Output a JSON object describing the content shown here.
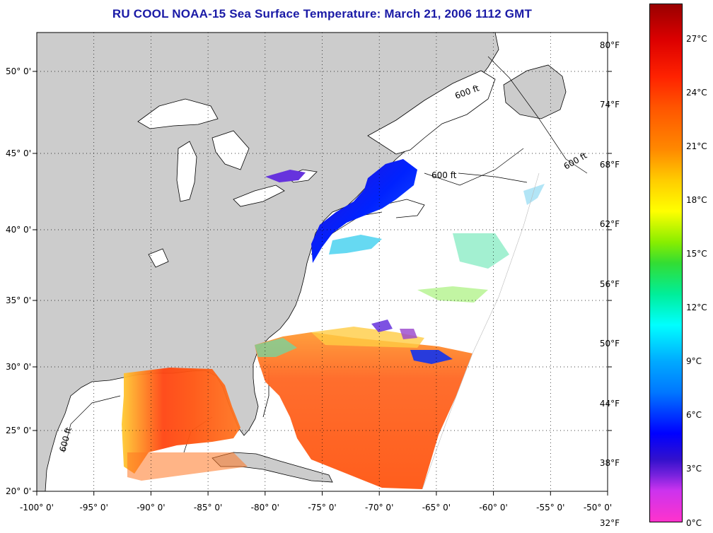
{
  "title": "RU COOL  NOAA-15  Sea Surface Temperature:  March 21, 2006 1112 GMT",
  "map": {
    "lon_range": [
      -100,
      -50
    ],
    "lat_range": [
      20,
      52.5
    ],
    "grid": true,
    "grid_style": "dotted",
    "land_color": "#cccccc",
    "water_color": "#ffffff",
    "x_ticks": [
      "-100° 0'",
      "-95° 0'",
      "-90° 0'",
      "-85° 0'",
      "-80° 0'",
      "-75° 0'",
      "-70° 0'",
      "-65° 0'",
      "-60° 0'",
      "-55° 0'",
      "-50° 0'"
    ],
    "y_ticks": [
      "20° 0'",
      "25° 0'",
      "30° 0'",
      "35° 0'",
      "40° 0'",
      "45° 0'",
      "50° 0'"
    ],
    "isobath_label": "600 ft"
  },
  "colorbar": {
    "celsius_labels": [
      "0°C",
      "3°C",
      "6°C",
      "9°C",
      "12°C",
      "15°C",
      "18°C",
      "21°C",
      "24°C",
      "27°C"
    ],
    "fahrenheit_labels": [
      "32°F",
      "38°F",
      "44°F",
      "50°F",
      "56°F",
      "62°F",
      "68°F",
      "74°F",
      "80°F"
    ],
    "range_c": [
      0,
      29
    ],
    "colors": [
      "#ff33cc",
      "#7722dd",
      "#0000ff",
      "#00aaff",
      "#00ffff",
      "#33dd33",
      "#ffff00",
      "#ff8800",
      "#ff2200",
      "#990000"
    ]
  }
}
